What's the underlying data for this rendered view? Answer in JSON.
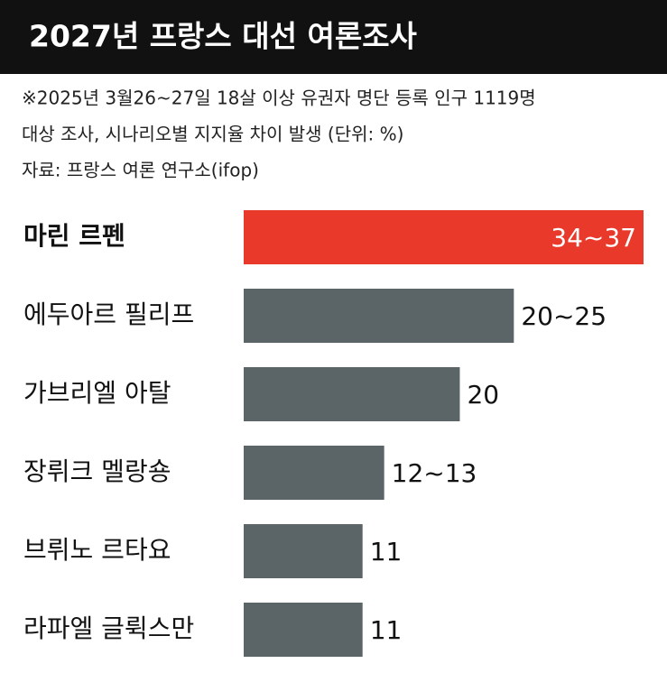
{
  "chart_data": {
    "type": "bar",
    "orientation": "horizontal",
    "title": "2027년 프랑스 대선 여론조사",
    "notes": [
      "※2025년 3월26~27일 18살 이상 유권자 명단 등록 인구 1119명",
      "대상 조사, 시나리오별 지지율 차이 발생 (단위: %)",
      "자료: 프랑스 여론 연구소(ifop)"
    ],
    "categories": [
      "마린 르펜",
      "에두아르 필리프",
      "가브리엘 아탈",
      "장뤼크 멜랑숑",
      "브뤼노 르타요",
      "라파엘 글뤽스만"
    ],
    "values": [
      37,
      25,
      20,
      13,
      11,
      11
    ],
    "value_labels": [
      "34~37",
      "20~25",
      "20",
      "12~13",
      "11",
      "11"
    ],
    "colors": [
      "#e8392b",
      "#5b6466",
      "#5b6466",
      "#5b6466",
      "#5b6466",
      "#5b6466"
    ]
  }
}
